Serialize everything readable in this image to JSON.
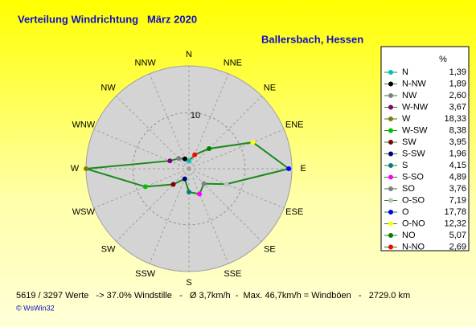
{
  "chart_data": {
    "type": "radar",
    "title": "Verteilung Windrichtung   März 2020",
    "subtitle": "Ballersbach, Hessen",
    "axis_labels": [
      "N",
      "NNE",
      "NE",
      "ENE",
      "E",
      "ESE",
      "SE",
      "SSE",
      "S",
      "SSW",
      "SW",
      "WSW",
      "W",
      "WNW",
      "NW",
      "NNW"
    ],
    "categories": [
      "N",
      "N-NW",
      "NW",
      "W-NW",
      "W",
      "W-SW",
      "SW",
      "S-SW",
      "S",
      "S-SO",
      "SO",
      "O-SO",
      "O",
      "O-NO",
      "NO",
      "N-NO"
    ],
    "values": [
      1.39,
      1.89,
      2.6,
      3.67,
      18.33,
      8.38,
      3.95,
      1.96,
      4.15,
      4.89,
      3.76,
      7.19,
      17.78,
      12.32,
      5.07,
      2.69
    ],
    "value_labels": [
      "1,39",
      "1,89",
      "2,60",
      "3,67",
      "18,33",
      "8,38",
      "3,95",
      "1,96",
      "4,15",
      "4,89",
      "3,76",
      "7,19",
      "17,78",
      "12,32",
      "5,07",
      "2,69"
    ],
    "colors": [
      "#00c0c0",
      "#000000",
      "#808080",
      "#800080",
      "#808000",
      "#00c000",
      "#800000",
      "#000080",
      "#008080",
      "#ff00ff",
      "#808080",
      "#c0c0c0",
      "#0000ff",
      "#ffff00",
      "#008000",
      "#ff0000"
    ],
    "line_color": "#1a8a1a",
    "rlim": [
      0,
      18.33
    ],
    "rticks": [
      10
    ],
    "legend_header": "%",
    "footer": "5619 / 3297 Werte   -> 37.0% Windstille   -   Ø 3,7km/h  -  Max. 46,7km/h = Windböen   -   2729.0 km",
    "credit": "© WsWin32"
  }
}
